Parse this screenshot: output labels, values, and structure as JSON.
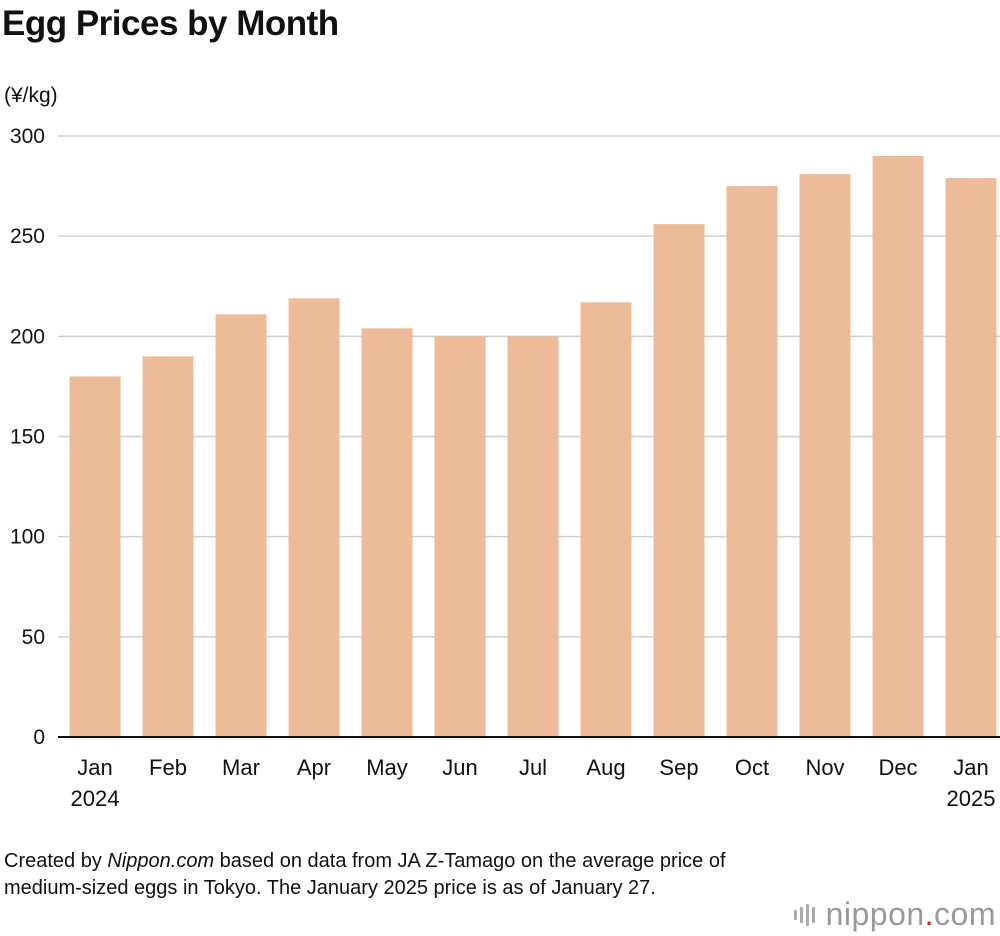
{
  "chart_data": {
    "type": "bar",
    "title": "Egg Prices by Month",
    "ylabel": "(¥/kg)",
    "xlabel": "",
    "categories": [
      [
        "Jan",
        "2024"
      ],
      [
        "Feb",
        ""
      ],
      [
        "Mar",
        ""
      ],
      [
        "Apr",
        ""
      ],
      [
        "May",
        ""
      ],
      [
        "Jun",
        ""
      ],
      [
        "Jul",
        ""
      ],
      [
        "Aug",
        ""
      ],
      [
        "Sep",
        ""
      ],
      [
        "Oct",
        ""
      ],
      [
        "Nov",
        ""
      ],
      [
        "Dec",
        ""
      ],
      [
        "Jan",
        "2025"
      ]
    ],
    "values": [
      180,
      190,
      211,
      219,
      204,
      200,
      200,
      217,
      256,
      275,
      281,
      290,
      279
    ],
    "ylim": [
      0,
      300
    ],
    "yticks": [
      0,
      50,
      100,
      150,
      200,
      250,
      300
    ],
    "grid": true,
    "bar_color": "#edbb99",
    "grid_color": "#cfcfcf"
  },
  "caption": {
    "pre": "Created by ",
    "source_italic": "Nippon.com",
    "post": " based on data from JA Z-Tamago on the average price of medium-sized eggs in Tokyo. The January 2025 price is as of January 27."
  },
  "logo": {
    "name": "nippon",
    "dot": ".",
    "suffix": "com"
  }
}
